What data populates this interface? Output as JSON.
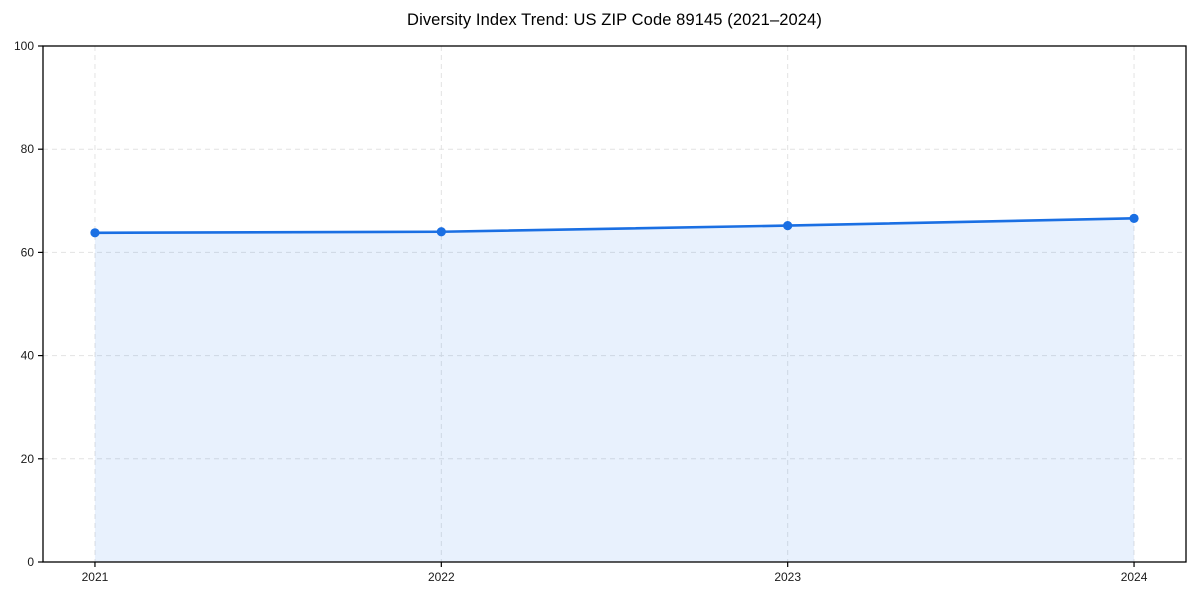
{
  "chart_data": {
    "type": "area",
    "title": "Diversity Index Trend: US ZIP Code 89145 (2021–2024)",
    "x": [
      2021,
      2022,
      2023,
      2024
    ],
    "series": [
      {
        "name": "Diversity Index",
        "values": [
          63.8,
          64.0,
          65.2,
          66.6
        ]
      }
    ],
    "xtick_labels": [
      "2021",
      "2022",
      "2023",
      "2024"
    ],
    "yticks": [
      0,
      20,
      40,
      60,
      80,
      100
    ],
    "xlim": [
      2020.85,
      2024.15
    ],
    "ylim": [
      0,
      100
    ],
    "xlabel": "",
    "ylabel": "",
    "grid": "dashed",
    "legend": "none",
    "marker": "circle",
    "colors": {
      "line": "#1a6fe3",
      "marker": "#1a6fe3",
      "area_fill": "#1a73e8",
      "area_fill_opacity": 0.1,
      "grid": "#e2e2e2",
      "spine": "#000000",
      "tick_label": "#1a1a1a",
      "title": "#000000",
      "background": "#ffffff"
    }
  }
}
